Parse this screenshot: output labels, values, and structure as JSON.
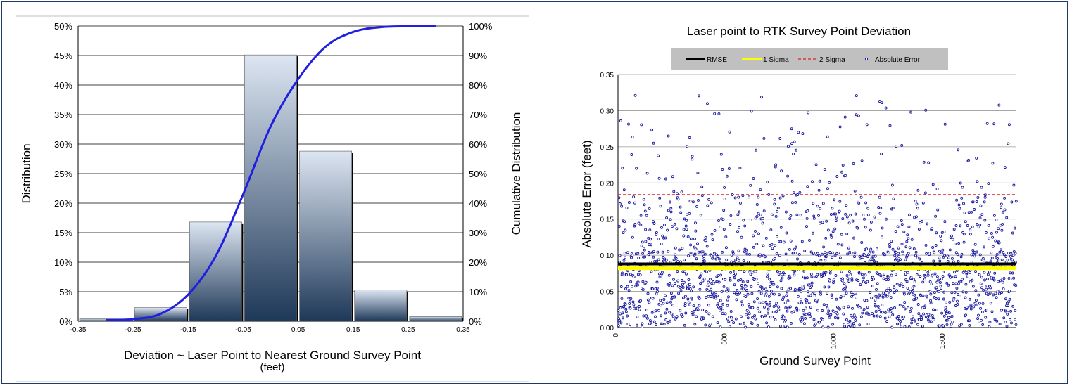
{
  "chart_data": [
    {
      "type": "bar",
      "title": "",
      "xlabel": "Deviation ~ Laser Point to Nearest Ground Survey Point",
      "xlabel_line2": "(feet)",
      "ylabel": "Distribution",
      "y2label": "Cumulative Distribution",
      "x_ticks": [
        "-0.35",
        "-0.25",
        "-0.15",
        "-0.05",
        "0.05",
        "0.15",
        "0.25",
        "0.35"
      ],
      "y_ticks": [
        "0%",
        "5%",
        "10%",
        "15%",
        "20%",
        "25%",
        "30%",
        "35%",
        "40%",
        "45%",
        "50%"
      ],
      "y2_ticks": [
        "0%",
        "10%",
        "20%",
        "30%",
        "40%",
        "50%",
        "60%",
        "70%",
        "80%",
        "90%",
        "100%"
      ],
      "ylim": [
        0,
        50
      ],
      "y2lim": [
        0,
        100
      ],
      "xlim": [
        -0.35,
        0.35
      ],
      "bins": [
        {
          "from": -0.35,
          "to": -0.25,
          "value": 0.4
        },
        {
          "from": -0.25,
          "to": -0.15,
          "value": 2.3
        },
        {
          "from": -0.15,
          "to": -0.05,
          "value": 16.8
        },
        {
          "from": -0.05,
          "to": 0.05,
          "value": 45.1
        },
        {
          "from": 0.05,
          "to": 0.15,
          "value": 28.8
        },
        {
          "from": 0.15,
          "to": 0.25,
          "value": 5.3
        },
        {
          "from": 0.25,
          "to": 0.35,
          "value": 0.8
        }
      ],
      "cumulative": {
        "x": [
          -0.3,
          -0.25,
          -0.2,
          -0.15,
          -0.1,
          -0.05,
          0.0,
          0.05,
          0.1,
          0.15,
          0.2,
          0.25,
          0.3
        ],
        "y": [
          0.4,
          0.7,
          2.5,
          9.0,
          22.0,
          43.0,
          66.0,
          82.0,
          93.0,
          98.0,
          99.6,
          99.9,
          100.0
        ]
      },
      "colors": {
        "curve": "#1f1fe0",
        "bar_top": "#dde6f2",
        "bar_bottom": "#1e3858"
      }
    },
    {
      "type": "scatter",
      "title": "Laser point to RTK Survey Point Deviation",
      "xlabel": "Ground Survey Point",
      "ylabel": "Absolute  Error  (feet)",
      "legend": [
        "RMSE",
        "1 Sigma",
        "2 Sigma",
        "Absolute Error"
      ],
      "legend_placement": "top",
      "x_ticks": [
        "0",
        "500",
        "1000",
        "1500"
      ],
      "y_ticks": [
        "0.00",
        "0.05",
        "0.10",
        "0.15",
        "0.20",
        "0.25",
        "0.30",
        "0.35"
      ],
      "xlim": [
        0,
        1830
      ],
      "ylim": [
        0,
        0.35
      ],
      "rmse": 0.088,
      "sigma1": 0.082,
      "sigma2": 0.184,
      "n_points": 1830,
      "colors": {
        "rmse": "#000000",
        "sigma1": "#ffff00",
        "sigma2": "#e02020",
        "points": "#1a1aa0",
        "legend_bg": "#c0c0c0"
      }
    }
  ]
}
